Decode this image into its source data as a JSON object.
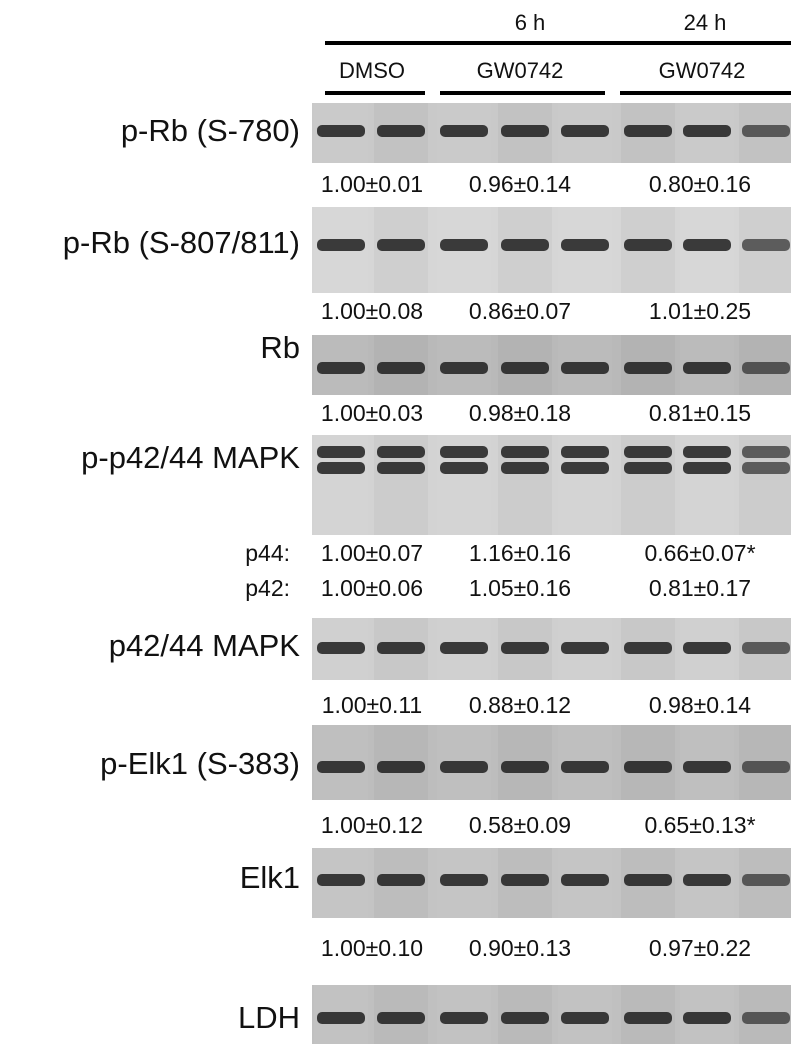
{
  "header": {
    "time_labels": [
      "6 h",
      "24 h"
    ],
    "group_labels": [
      "DMSO",
      "GW0742",
      "GW0742"
    ]
  },
  "blots": [
    {
      "label": "p-Rb (S-780)",
      "quant_rows": [
        {
          "values": [
            "1.00±0.01",
            "0.96±0.14",
            "0.80±0.16"
          ]
        }
      ]
    },
    {
      "label": "p-Rb (S-807/811)",
      "quant_rows": [
        {
          "values": [
            "1.00±0.08",
            "0.86±0.07",
            "1.01±0.25"
          ]
        }
      ]
    },
    {
      "label": "Rb",
      "quant_rows": [
        {
          "values": [
            "1.00±0.03",
            "0.98±0.18",
            "0.81±0.15"
          ]
        }
      ]
    },
    {
      "label": "p-p42/44 MAPK",
      "quant_rows": [
        {
          "prefix": "p44:",
          "values": [
            "1.00±0.07",
            "1.16±0.16",
            "0.66±0.07*"
          ]
        },
        {
          "prefix": "p42:",
          "values": [
            "1.00±0.06",
            "1.05±0.16",
            "0.81±0.17"
          ]
        }
      ]
    },
    {
      "label": "p42/44 MAPK",
      "quant_rows": [
        {
          "values": [
            "1.00±0.11",
            "0.88±0.12",
            "0.98±0.14"
          ]
        }
      ]
    },
    {
      "label": "p-Elk1 (S-383)",
      "quant_rows": [
        {
          "values": [
            "1.00±0.12",
            "0.58±0.09",
            "0.65±0.13*"
          ]
        }
      ]
    },
    {
      "label": "Elk1",
      "quant_rows": [
        {
          "values": [
            "1.00±0.10",
            "0.90±0.13",
            "0.97±0.22"
          ]
        }
      ]
    },
    {
      "label": "LDH"
    }
  ]
}
